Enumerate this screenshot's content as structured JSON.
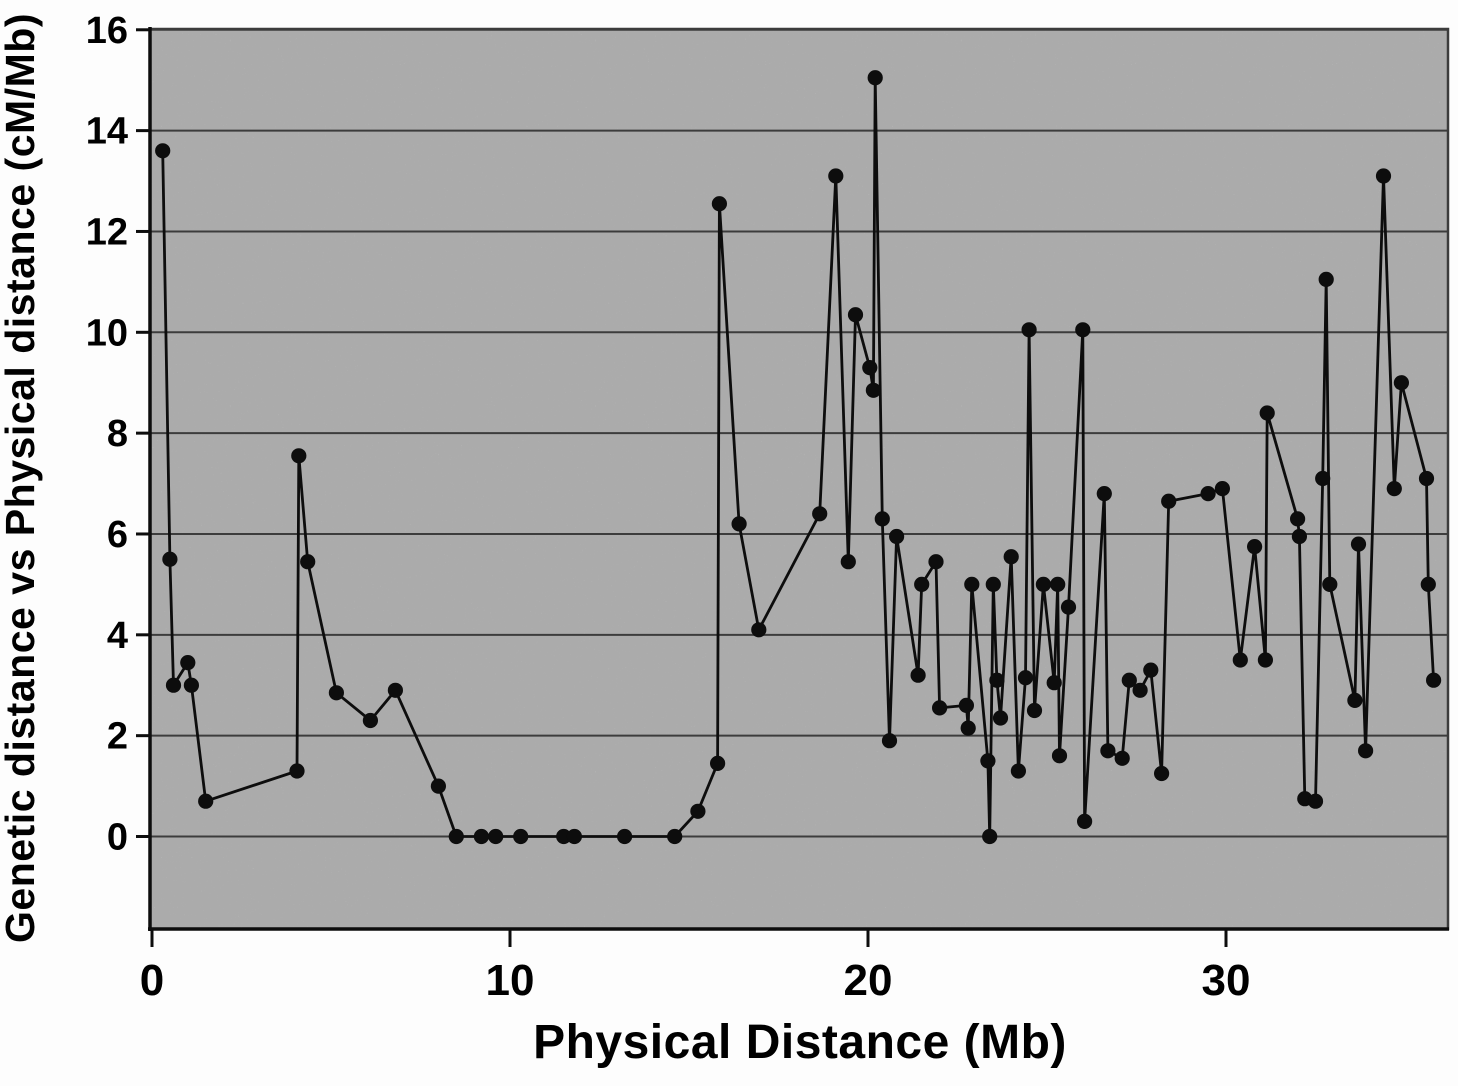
{
  "figure": {
    "background_color": "#fdfdfd",
    "plot_background_color": "#c8c8c8",
    "grid_color": "#3c3c3c",
    "axis_color": "#0d0d0d",
    "series_color": "#0d0d0d",
    "text_color": "#000000"
  },
  "chart_data": {
    "type": "line",
    "title": "",
    "xlabel": "Physical Distance (Mb)",
    "ylabel": "Genetic distance vs Physical distance (cM/Mb)",
    "xlim": [
      0,
      36.2
    ],
    "ylim": [
      -1.85,
      16
    ],
    "x_ticks": [
      0,
      10,
      20,
      30
    ],
    "y_ticks": [
      0,
      2,
      4,
      6,
      8,
      10,
      12,
      14,
      16
    ],
    "grid": "horizontal",
    "legend": "none",
    "marker": "filled-circle",
    "points": [
      [
        0.3,
        13.6
      ],
      [
        0.5,
        5.5
      ],
      [
        0.6,
        3.0
      ],
      [
        1.0,
        3.45
      ],
      [
        1.1,
        3.0
      ],
      [
        1.5,
        0.7
      ],
      [
        4.05,
        1.3
      ],
      [
        4.1,
        7.55
      ],
      [
        4.35,
        5.45
      ],
      [
        5.15,
        2.85
      ],
      [
        6.1,
        2.3
      ],
      [
        6.8,
        2.9
      ],
      [
        8.0,
        1.0
      ],
      [
        8.5,
        0.0
      ],
      [
        9.2,
        0.0
      ],
      [
        9.6,
        0.0
      ],
      [
        10.3,
        0.0
      ],
      [
        11.5,
        0.0
      ],
      [
        11.8,
        0.0
      ],
      [
        13.2,
        0.0
      ],
      [
        14.6,
        0.0
      ],
      [
        15.25,
        0.5
      ],
      [
        15.8,
        1.45
      ],
      [
        15.85,
        12.55
      ],
      [
        16.4,
        6.2
      ],
      [
        16.95,
        4.1
      ],
      [
        18.65,
        6.4
      ],
      [
        19.1,
        13.1
      ],
      [
        19.45,
        5.45
      ],
      [
        19.65,
        10.35
      ],
      [
        20.05,
        9.3
      ],
      [
        20.15,
        8.85
      ],
      [
        20.2,
        15.05
      ],
      [
        20.4,
        6.3
      ],
      [
        20.6,
        1.9
      ],
      [
        20.8,
        5.95
      ],
      [
        21.4,
        3.2
      ],
      [
        21.5,
        5.0
      ],
      [
        21.9,
        5.45
      ],
      [
        22.0,
        2.55
      ],
      [
        22.75,
        2.6
      ],
      [
        22.8,
        2.15
      ],
      [
        22.9,
        5.0
      ],
      [
        23.35,
        1.5
      ],
      [
        23.4,
        0.0
      ],
      [
        23.5,
        5.0
      ],
      [
        23.6,
        3.1
      ],
      [
        23.7,
        2.35
      ],
      [
        24.0,
        5.55
      ],
      [
        24.2,
        1.3
      ],
      [
        24.4,
        3.15
      ],
      [
        24.5,
        10.05
      ],
      [
        24.65,
        2.5
      ],
      [
        24.9,
        5.0
      ],
      [
        25.2,
        3.05
      ],
      [
        25.3,
        5.0
      ],
      [
        25.35,
        1.6
      ],
      [
        25.6,
        4.55
      ],
      [
        26.0,
        10.05
      ],
      [
        26.05,
        0.3
      ],
      [
        26.6,
        6.8
      ],
      [
        26.7,
        1.7
      ],
      [
        27.1,
        1.55
      ],
      [
        27.3,
        3.1
      ],
      [
        27.6,
        2.9
      ],
      [
        27.9,
        3.3
      ],
      [
        28.2,
        1.25
      ],
      [
        28.4,
        6.65
      ],
      [
        29.5,
        6.8
      ],
      [
        29.9,
        6.9
      ],
      [
        30.4,
        3.5
      ],
      [
        30.8,
        5.75
      ],
      [
        31.1,
        3.5
      ],
      [
        31.15,
        8.4
      ],
      [
        32.0,
        6.3
      ],
      [
        32.05,
        5.95
      ],
      [
        32.2,
        0.75
      ],
      [
        32.5,
        0.7
      ],
      [
        32.7,
        7.1
      ],
      [
        32.8,
        11.05
      ],
      [
        32.9,
        5.0
      ],
      [
        33.6,
        2.7
      ],
      [
        33.7,
        5.8
      ],
      [
        33.9,
        1.7
      ],
      [
        34.4,
        13.1
      ],
      [
        34.7,
        6.9
      ],
      [
        34.9,
        9.0
      ],
      [
        35.6,
        7.1
      ],
      [
        35.65,
        5.0
      ],
      [
        35.8,
        3.1
      ]
    ]
  }
}
